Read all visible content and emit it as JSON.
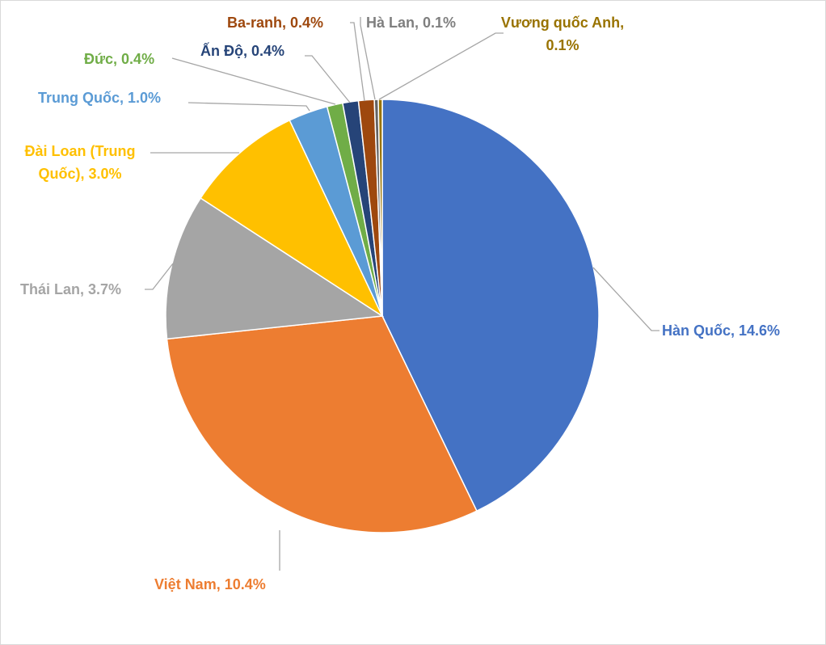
{
  "chart_data": {
    "type": "pie",
    "values": [
      14.6,
      10.4,
      3.7,
      3.0,
      1.0,
      0.4,
      0.4,
      0.4,
      0.1,
      0.1
    ],
    "value_labels": [
      "Hàn Quốc, 14.6%",
      "Việt Nam, 10.4%",
      "Thái Lan, 3.7%",
      "Đài Loan (Trung Quốc), 3.0%",
      "Trung Quốc, 1.0%",
      "Đức, 0.4%",
      "Ấn Độ, 0.4%",
      "Ba-ranh, 0.4%",
      "Hà Lan, 0.1%",
      "Vương quốc Anh, 0.1%"
    ],
    "colors": [
      "#4472c4",
      "#ed7d31",
      "#a5a5a5",
      "#ffc000",
      "#5b9bd5",
      "#70ad47",
      "#264478",
      "#9e480e",
      "#636363",
      "#997300"
    ],
    "label_colors": [
      "#4472c4",
      "#ed7d31",
      "#a5a5a5",
      "#ffc000",
      "#5b9bd5",
      "#70ad47",
      "#264478",
      "#9e480e",
      "#7f7f7f",
      "#997300"
    ]
  }
}
